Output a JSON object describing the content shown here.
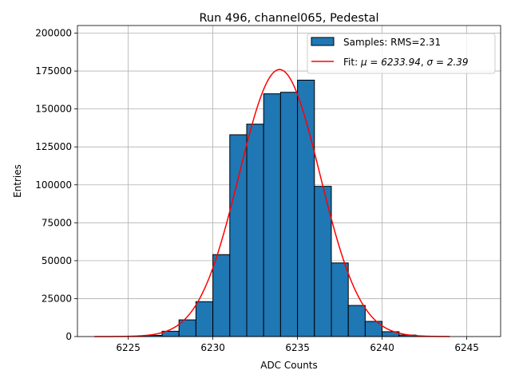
{
  "chart_data": {
    "type": "bar",
    "title": "Run 496, channel065, Pedestal",
    "xlabel": "ADC Counts",
    "ylabel": "Entries",
    "xlim": [
      6222,
      6247
    ],
    "ylim": [
      0,
      205000
    ],
    "xticks": [
      6225,
      6230,
      6235,
      6240,
      6245
    ],
    "yticks": [
      0,
      25000,
      50000,
      75000,
      100000,
      125000,
      150000,
      175000,
      200000
    ],
    "grid": true,
    "bar_color": "#1f77b4",
    "fit_color": "#ff0000",
    "histogram": {
      "name": "Samples: RMS=2.31",
      "bin_width": 1,
      "bin_left_edges": [
        6225,
        6226,
        6227,
        6228,
        6229,
        6230,
        6231,
        6232,
        6233,
        6234,
        6235,
        6236,
        6237,
        6238,
        6239,
        6240,
        6241,
        6242
      ],
      "counts": [
        200,
        800,
        3500,
        11000,
        23000,
        54000,
        133000,
        140000,
        160000,
        161000,
        169000,
        99000,
        48500,
        20500,
        10000,
        3200,
        1000,
        200
      ]
    },
    "fit": {
      "name": "Fit: μ = 6233.94, σ = 2.39",
      "label_prefix": "Fit: ",
      "mu_text": "μ = 6233.94",
      "sigma_text": "σ = 2.39",
      "mu": 6233.94,
      "sigma": 2.39,
      "amplitude": 176000,
      "x_range": [
        6223,
        6244
      ]
    },
    "legend": "top-right"
  }
}
